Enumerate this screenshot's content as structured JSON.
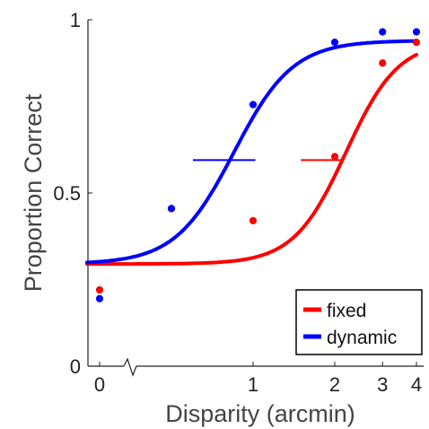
{
  "chart_data": {
    "type": "scatter",
    "xlabel": "Disparity (arcmin)",
    "ylabel": "Proportion Correct",
    "x_scale": "log with break at 0",
    "x_ticks": [
      {
        "value": 0,
        "label": "0"
      },
      {
        "value": 1,
        "label": "1"
      },
      {
        "value": 2,
        "label": "2"
      },
      {
        "value": 3,
        "label": "3"
      },
      {
        "value": 4,
        "label": "4"
      }
    ],
    "y_ticks": [
      {
        "value": 0,
        "label": "0"
      },
      {
        "value": 0.5,
        "label": "0.5"
      },
      {
        "value": 1,
        "label": "1"
      }
    ],
    "ylim": [
      0,
      1
    ],
    "grid": false,
    "legend_position": "bottom-right",
    "series": [
      {
        "name": "fixed",
        "color": "#ff0000",
        "points": [
          {
            "x": 0,
            "y": 0.22
          },
          {
            "x": 0.5,
            "y": 0.455
          },
          {
            "x": 1.0,
            "y": 0.42
          },
          {
            "x": 2.0,
            "y": 0.605
          },
          {
            "x": 3.0,
            "y": 0.875
          },
          {
            "x": 4.0,
            "y": 0.935
          }
        ],
        "fit": {
          "lower": 0.295,
          "upper": 0.94,
          "threshold": 2.2,
          "slope": 4.5
        },
        "threshold_bar": {
          "center": 1.95,
          "low": 1.5,
          "high": 2.15,
          "y": 0.595
        }
      },
      {
        "name": "dynamic",
        "color": "#0000ff",
        "points": [
          {
            "x": 0,
            "y": 0.195
          },
          {
            "x": 0.5,
            "y": 0.455
          },
          {
            "x": 1.0,
            "y": 0.755
          },
          {
            "x": 2.0,
            "y": 0.935
          },
          {
            "x": 3.0,
            "y": 0.965
          },
          {
            "x": 4.0,
            "y": 0.965
          }
        ],
        "fit": {
          "lower": 0.295,
          "upper": 0.94,
          "threshold": 0.85,
          "slope": 4.0
        },
        "threshold_bar": {
          "center": 0.82,
          "low": 0.6,
          "high": 1.02,
          "y": 0.595
        }
      }
    ]
  }
}
